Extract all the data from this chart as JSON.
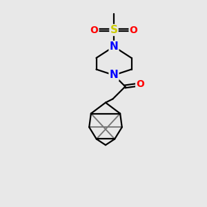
{
  "background_color": "#e8e8e8",
  "atom_colors": {
    "N": "#0000FF",
    "O": "#FF0000",
    "S": "#CCCC00",
    "C": "#000000"
  },
  "line_color": "#000000",
  "line_width": 1.6,
  "figsize": [
    3.0,
    3.0
  ],
  "dpi": 100,
  "xlim": [
    0,
    10
  ],
  "ylim": [
    0,
    10
  ]
}
